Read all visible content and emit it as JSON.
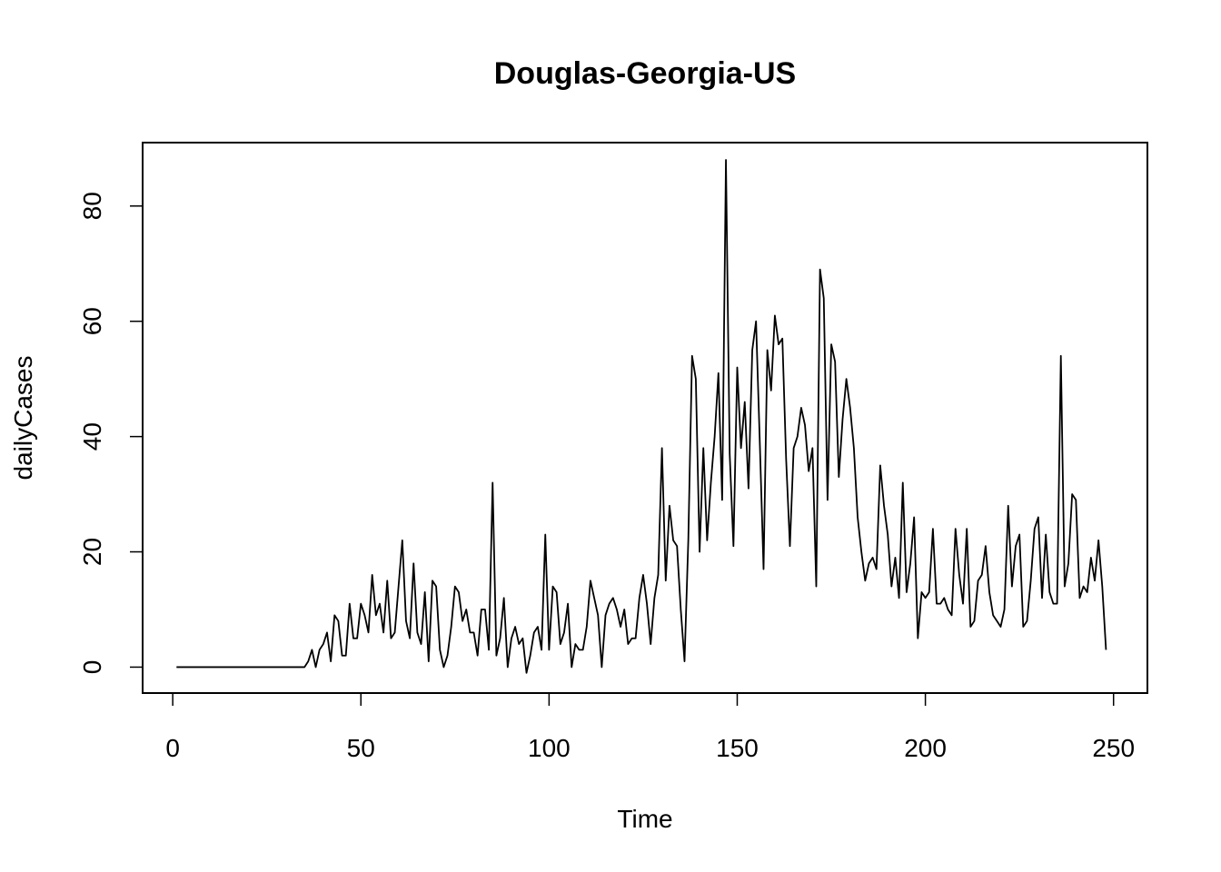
{
  "chart_data": {
    "type": "line",
    "title": "Douglas-Georgia-US",
    "xlabel": "Time",
    "ylabel": "dailyCases",
    "xlim": [
      -8,
      259
    ],
    "ylim": [
      -4.5,
      91
    ],
    "xticks": [
      0,
      50,
      100,
      150,
      200,
      250
    ],
    "yticks": [
      0,
      20,
      40,
      60,
      80
    ],
    "grid": false,
    "line_color": "#000000",
    "series": [
      {
        "x_start": 1,
        "values": [
          0,
          0,
          0,
          0,
          0,
          0,
          0,
          0,
          0,
          0,
          0,
          0,
          0,
          0,
          0,
          0,
          0,
          0,
          0,
          0,
          0,
          0,
          0,
          0,
          0,
          0,
          0,
          0,
          0,
          0,
          0,
          0,
          0,
          0,
          0,
          1,
          3,
          0,
          3,
          4,
          6,
          1,
          9,
          8,
          2,
          2,
          11,
          5,
          5,
          11,
          9,
          6,
          16,
          9,
          11,
          6,
          15,
          5,
          6,
          14,
          22,
          8,
          5,
          18,
          6,
          4,
          13,
          1,
          15,
          14,
          3,
          0,
          2,
          7,
          14,
          13,
          8,
          10,
          6,
          6,
          2,
          10,
          10,
          3,
          32,
          2,
          5,
          12,
          0,
          5,
          7,
          4,
          5,
          -1,
          2,
          6,
          7,
          3,
          23,
          3,
          14,
          13,
          4,
          6,
          11,
          0,
          4,
          3,
          3,
          7,
          15,
          12,
          9,
          0,
          9,
          11,
          12,
          10,
          7,
          10,
          4,
          5,
          5,
          12,
          16,
          11,
          4,
          12,
          16,
          38,
          15,
          28,
          22,
          21,
          10,
          1,
          22,
          54,
          50,
          20,
          38,
          22,
          32,
          40,
          51,
          29,
          88,
          37,
          21,
          52,
          38,
          46,
          31,
          55,
          60,
          39,
          17,
          55,
          48,
          61,
          56,
          57,
          36,
          21,
          38,
          40,
          45,
          42,
          34,
          38,
          14,
          69,
          64,
          29,
          56,
          53,
          33,
          43,
          50,
          45,
          38,
          26,
          20,
          15,
          18,
          19,
          17,
          35,
          28,
          23,
          14,
          19,
          12,
          32,
          13,
          18,
          26,
          5,
          13,
          12,
          13,
          24,
          11,
          11,
          12,
          10,
          9,
          24,
          16,
          11,
          24,
          7,
          8,
          15,
          16,
          21,
          13,
          9,
          8,
          7,
          10,
          28,
          14,
          21,
          23,
          7,
          8,
          15,
          24,
          26,
          12,
          23,
          13,
          11,
          11,
          54,
          14,
          18,
          30,
          29,
          12,
          14,
          13,
          19,
          15,
          22,
          14,
          3
        ]
      }
    ]
  }
}
